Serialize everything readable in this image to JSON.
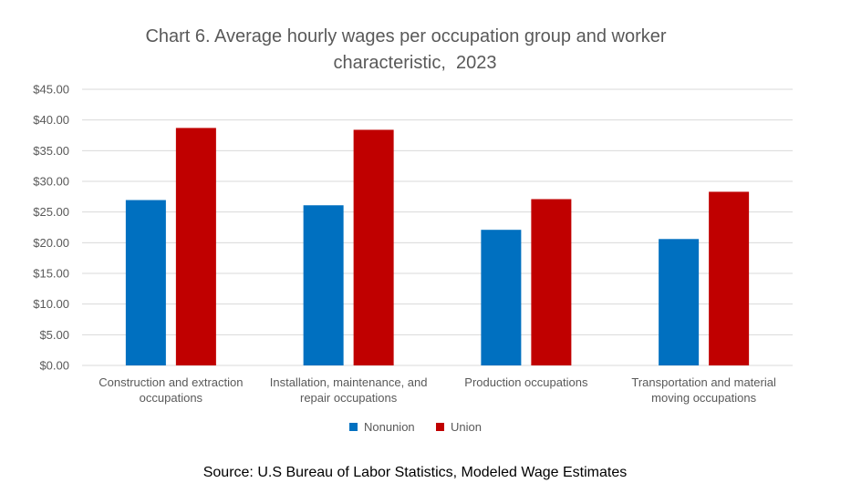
{
  "chart_data": {
    "type": "bar",
    "title_line1": "Chart 6. Average hourly wages per occupation group and worker",
    "title_line2": "characteristic,  2023",
    "xlabel": "",
    "ylabel": "",
    "categories": [
      [
        "Construction and extraction",
        "occupations"
      ],
      [
        "Installation, maintenance, and",
        "repair occupations"
      ],
      [
        "Production occupations"
      ],
      [
        "Transportation and material",
        "moving occupations"
      ]
    ],
    "series": [
      {
        "name": "Nonunion",
        "color": "#0070C0",
        "values": [
          26.95,
          26.1,
          22.1,
          20.6
        ]
      },
      {
        "name": "Union",
        "color": "#C00000",
        "values": [
          38.7,
          38.4,
          27.1,
          28.3
        ]
      }
    ],
    "ylim": [
      0,
      45
    ],
    "y_ticks": [
      "$0.00",
      "$5.00",
      "$10.00",
      "$15.00",
      "$20.00",
      "$25.00",
      "$30.00",
      "$35.00",
      "$40.00",
      "$45.00"
    ],
    "grid": true,
    "legend_position": "bottom"
  },
  "source": "Source: U.S Bureau of Labor Statistics, Modeled Wage Estimates"
}
